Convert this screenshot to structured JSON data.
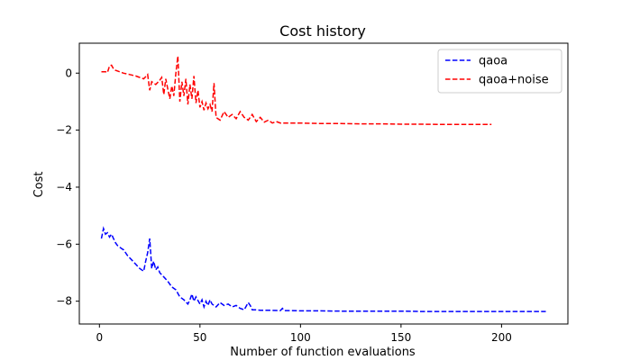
{
  "chart_data": {
    "type": "line",
    "title": "Cost history",
    "xlabel": "Number of function evaluations",
    "ylabel": "Cost",
    "xlim": [
      -10,
      233
    ],
    "ylim": [
      -8.8,
      1.05
    ],
    "xticks": [
      0,
      50,
      100,
      150,
      200
    ],
    "yticks": [
      0,
      -2,
      -4,
      -6,
      -8
    ],
    "xtick_labels": [
      "0",
      "50",
      "100",
      "150",
      "200"
    ],
    "ytick_labels": [
      "0",
      "−2",
      "−4",
      "−6",
      "−8"
    ],
    "grid": false,
    "legend": "top-right",
    "series": [
      {
        "name": "qaoa",
        "color": "#0000ff",
        "style": "dashed",
        "x": [
          1,
          2,
          3,
          4,
          5,
          6,
          7,
          8,
          9,
          10,
          11,
          12,
          14,
          16,
          18,
          20,
          21,
          22,
          23,
          24,
          25,
          26,
          27,
          28,
          29,
          30,
          32,
          34,
          36,
          38,
          40,
          42,
          44,
          45,
          46,
          47,
          48,
          50,
          51,
          52,
          53,
          54,
          55,
          56,
          58,
          60,
          62,
          64,
          66,
          68,
          70,
          72,
          74,
          75,
          76,
          78,
          80,
          85,
          90,
          91,
          92,
          95,
          100,
          110,
          120,
          130,
          140,
          150,
          160,
          170,
          180,
          190,
          200,
          210,
          222
        ],
        "y": [
          -5.8,
          -5.45,
          -5.65,
          -5.6,
          -5.75,
          -5.65,
          -5.8,
          -5.95,
          -6.05,
          -6.1,
          -6.15,
          -6.2,
          -6.4,
          -6.55,
          -6.7,
          -6.85,
          -6.9,
          -6.95,
          -6.6,
          -6.3,
          -5.8,
          -6.85,
          -6.6,
          -6.9,
          -6.8,
          -7.0,
          -7.15,
          -7.3,
          -7.5,
          -7.6,
          -7.85,
          -7.95,
          -8.1,
          -7.95,
          -7.75,
          -8.0,
          -7.85,
          -8.1,
          -7.95,
          -8.2,
          -8.0,
          -8.15,
          -7.95,
          -8.1,
          -8.2,
          -8.05,
          -8.15,
          -8.1,
          -8.2,
          -8.15,
          -8.25,
          -8.3,
          -8.05,
          -8.15,
          -8.3,
          -8.3,
          -8.32,
          -8.32,
          -8.33,
          -8.25,
          -8.33,
          -8.33,
          -8.34,
          -8.34,
          -8.35,
          -8.35,
          -8.35,
          -8.35,
          -8.36,
          -8.36,
          -8.36,
          -8.36,
          -8.36,
          -8.36,
          -8.36
        ]
      },
      {
        "name": "qaoa+noise",
        "color": "#ff0000",
        "style": "dashed",
        "x": [
          1,
          3,
          4,
          5,
          6,
          7,
          8,
          10,
          12,
          15,
          18,
          20,
          22,
          24,
          25,
          26,
          28,
          30,
          31,
          32,
          33,
          34,
          35,
          36,
          37,
          38,
          39,
          40,
          41,
          42,
          43,
          44,
          45,
          46,
          47,
          48,
          49,
          50,
          51,
          52,
          53,
          54,
          55,
          56,
          57,
          58,
          60,
          62,
          64,
          66,
          68,
          70,
          72,
          74,
          76,
          78,
          80,
          82,
          84,
          86,
          88,
          90,
          95,
          100,
          110,
          120,
          130,
          140,
          150,
          160,
          170,
          180,
          195
        ],
        "y": [
          0.05,
          0.05,
          0.02,
          0.25,
          0.28,
          0.15,
          0.1,
          0.05,
          0.0,
          -0.05,
          -0.1,
          -0.15,
          -0.2,
          -0.05,
          -0.6,
          -0.3,
          -0.4,
          -0.25,
          -0.15,
          -0.75,
          -0.2,
          -0.55,
          -0.9,
          -0.45,
          -0.8,
          0.0,
          0.6,
          -1.0,
          -0.3,
          -0.8,
          -0.2,
          -1.1,
          -0.4,
          -0.9,
          -0.1,
          -1.05,
          -0.6,
          -1.2,
          -1.0,
          -1.3,
          -1.05,
          -1.25,
          -1.1,
          -1.35,
          -0.35,
          -1.55,
          -1.65,
          -1.35,
          -1.55,
          -1.45,
          -1.6,
          -1.35,
          -1.55,
          -1.65,
          -1.45,
          -1.7,
          -1.55,
          -1.72,
          -1.65,
          -1.75,
          -1.7,
          -1.75,
          -1.75,
          -1.75,
          -1.77,
          -1.77,
          -1.78,
          -1.78,
          -1.79,
          -1.79,
          -1.8,
          -1.8,
          -1.8
        ]
      }
    ]
  }
}
